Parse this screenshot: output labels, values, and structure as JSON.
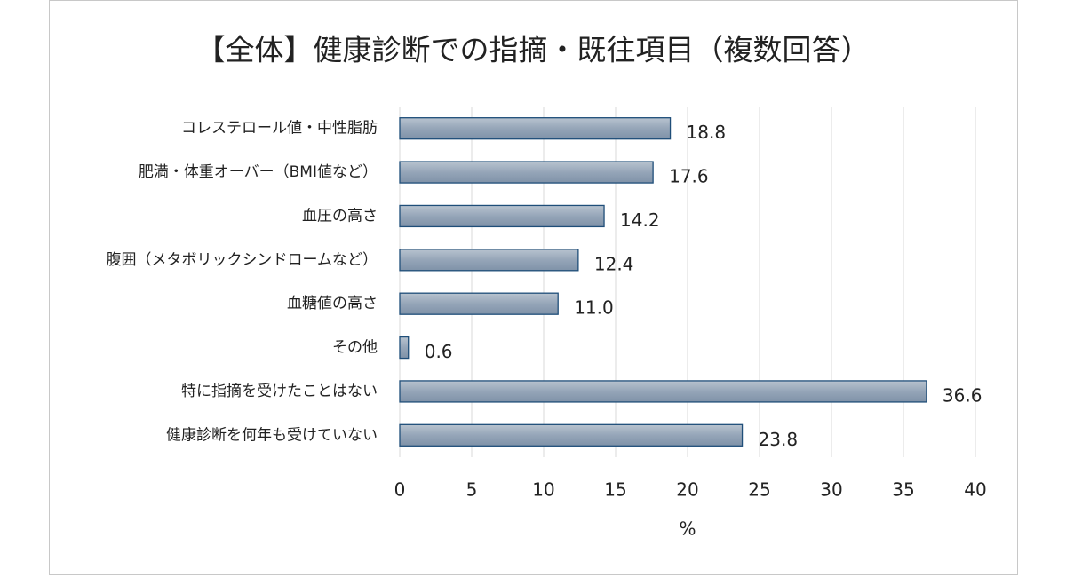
{
  "chart_data": {
    "type": "bar",
    "orientation": "horizontal",
    "title": "【全体】健康診断での指摘・既往項目（複数回答）",
    "xlabel": "%",
    "categories": [
      "コレステロール値・中性脂肪",
      "肥満・体重オーバー（BMI値など）",
      "血圧の高さ",
      "腹囲（メタボリックシンドロームなど）",
      "血糖値の高さ",
      "その他",
      "特に指摘を受けたことはない",
      "健康診断を何年も受けていない"
    ],
    "values": [
      18.8,
      17.6,
      14.2,
      12.4,
      11.0,
      0.6,
      36.6,
      23.8
    ],
    "value_labels": [
      "18.8",
      "17.6",
      "14.2",
      "12.4",
      "11.0",
      "0.6",
      "36.6",
      "23.8"
    ],
    "color": "#95a5b8",
    "xlim": [
      0,
      40
    ],
    "xticks": [
      0,
      5,
      10,
      15,
      20,
      25,
      30,
      35,
      40
    ],
    "grid": true
  }
}
